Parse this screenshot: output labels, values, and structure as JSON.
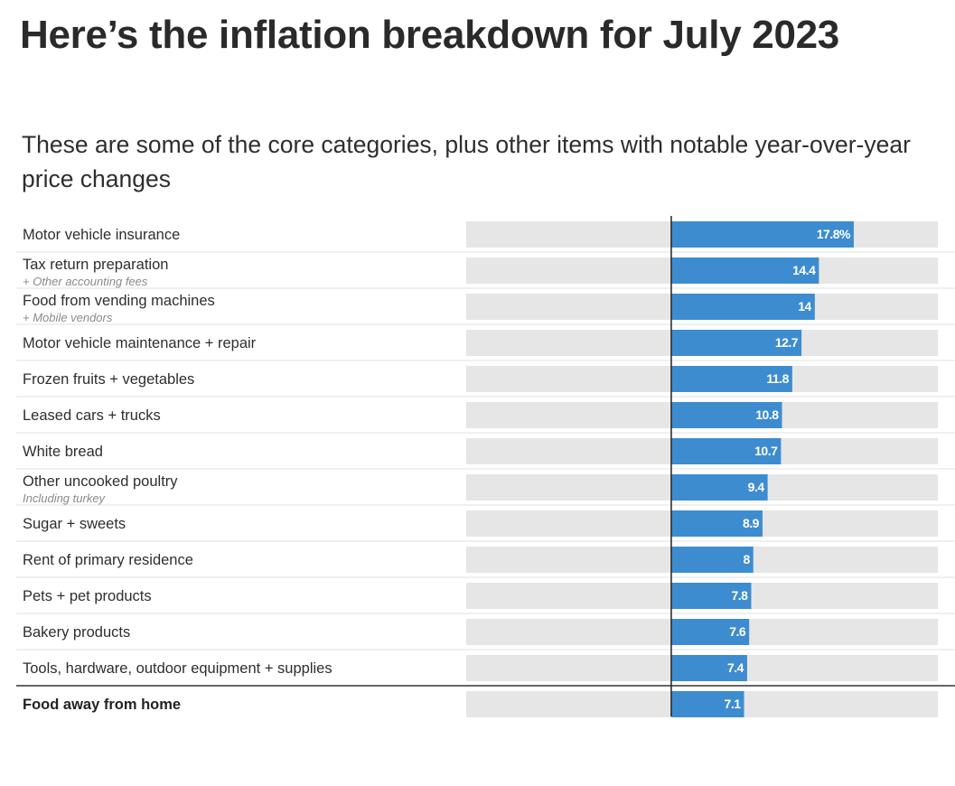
{
  "header": {
    "title": "Here’s the inflation breakdown for July 2023",
    "subtitle": "These are some of the core categories, plus other items with notable year-over-year price changes"
  },
  "colors": {
    "bar": "#3d8ccf",
    "track": "#e6e6e6",
    "separator": "#e0e0e0",
    "axis": "#222222"
  },
  "chart_data": {
    "type": "bar",
    "orientation": "horizontal",
    "title": "Here’s the inflation breakdown for July 2023",
    "subtitle": "These are some of the core categories, plus other items with notable year-over-year price changes",
    "xlim": [
      -20,
      26
    ],
    "unit": "%",
    "categories": [
      "Motor vehicle insurance",
      "Tax return preparation",
      "Food from vending machines",
      "Motor vehicle maintenance + repair",
      "Frozen fruits + vegetables",
      "Leased cars + trucks",
      "White bread",
      "Other uncooked poultry",
      "Sugar + sweets",
      "Rent of primary residence",
      "Pets + pet products",
      "Bakery products",
      "Tools, hardware, outdoor equipment + supplies",
      "Food away from home"
    ],
    "notes": [
      "",
      "+ Other accounting fees",
      "+ Mobile vendors",
      "",
      "",
      "",
      "",
      "Including turkey",
      "",
      "",
      "",
      "",
      "",
      ""
    ],
    "values": [
      17.8,
      14.4,
      14,
      12.7,
      11.8,
      10.8,
      10.7,
      9.4,
      8.9,
      8,
      7.8,
      7.6,
      7.4,
      7.1
    ],
    "value_labels": [
      "17.8%",
      "14.4",
      "14",
      "12.7",
      "11.8",
      "10.8",
      "10.7",
      "9.4",
      "8.9",
      "8",
      "7.8",
      "7.6",
      "7.4",
      "7.1"
    ],
    "bold_rows": [
      13
    ]
  }
}
